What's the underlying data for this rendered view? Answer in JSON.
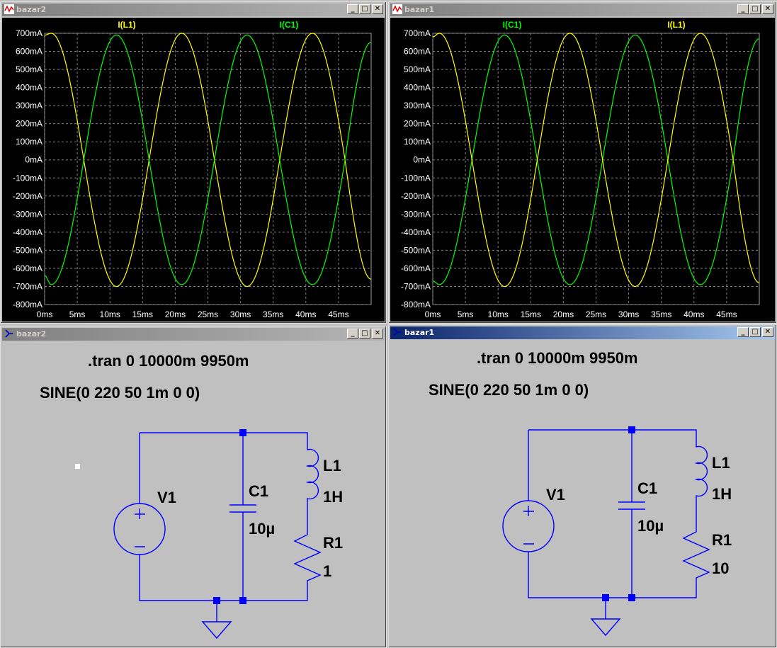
{
  "windows": {
    "plot_left": {
      "title": "bazar2",
      "legend": [
        {
          "label": "I(L1)",
          "color": "#ffff00"
        },
        {
          "label": "I(C1)",
          "color": "#00ff00"
        }
      ]
    },
    "plot_right": {
      "title": "bazar1",
      "legend": [
        {
          "label": "I(C1)",
          "color": "#00ff00"
        },
        {
          "label": "I(L1)",
          "color": "#ffff00"
        }
      ]
    },
    "sch_left": {
      "title": "bazar2",
      "directive_tran": ".tran 0 10000m 9950m",
      "source_value": "SINE(0 220 50 1m 0 0)",
      "v_name": "V1",
      "c_name": "C1",
      "c_value": "10µ",
      "l_name": "L1",
      "l_value": "1H",
      "r_name": "R1",
      "r_value": "1"
    },
    "sch_right": {
      "title": "bazar1",
      "directive_tran": ".tran 0 10000m 9950m",
      "source_value": "SINE(0 220 50 1m 0 0)",
      "v_name": "V1",
      "c_name": "C1",
      "c_value": "10µ",
      "l_name": "L1",
      "l_value": "1H",
      "r_name": "R1",
      "r_value": "10"
    }
  },
  "window_buttons": {
    "minimize": "_",
    "maximize": "□",
    "close": "✕"
  },
  "icons": {
    "plot": "waveform-icon",
    "schematic": "schematic-icon"
  },
  "colors": {
    "trace_l1": "#ffff00",
    "trace_c1": "#00ff00",
    "wire": "#0000ff",
    "plot_bg": "#000000"
  },
  "chart_data": [
    {
      "type": "line",
      "window": "bazar2",
      "x_unit": "ms",
      "xlim": [
        0,
        50
      ],
      "ylim": [
        -800,
        700
      ],
      "y_unit": "mA",
      "y_ticks": [
        "700mA",
        "600mA",
        "500mA",
        "400mA",
        "300mA",
        "200mA",
        "100mA",
        "0mA",
        "-100mA",
        "-200mA",
        "-300mA",
        "-400mA",
        "-500mA",
        "-600mA",
        "-700mA",
        "-800mA"
      ],
      "x_ticks": [
        "0ms",
        "5ms",
        "10ms",
        "15ms",
        "20ms",
        "25ms",
        "30ms",
        "35ms",
        "40ms",
        "45ms"
      ],
      "grid": true,
      "series": [
        {
          "name": "I(L1)",
          "color": "#ffff00",
          "x": [
            0,
            1,
            6,
            11,
            16,
            21,
            26,
            31,
            36,
            41,
            46,
            50
          ],
          "y": [
            690,
            700,
            0,
            -700,
            0,
            700,
            0,
            -700,
            0,
            700,
            0,
            -660
          ]
        },
        {
          "name": "I(C1)",
          "color": "#00ff00",
          "x": [
            0,
            1,
            6,
            11,
            16,
            21,
            26,
            31,
            36,
            41,
            46,
            50
          ],
          "y": [
            -640,
            -690,
            0,
            690,
            0,
            -690,
            0,
            690,
            0,
            -690,
            0,
            650
          ]
        }
      ]
    },
    {
      "type": "line",
      "window": "bazar1",
      "x_unit": "ms",
      "xlim": [
        0,
        50
      ],
      "ylim": [
        -800,
        700
      ],
      "y_unit": "mA",
      "y_ticks": [
        "700mA",
        "600mA",
        "500mA",
        "400mA",
        "300mA",
        "200mA",
        "100mA",
        "0mA",
        "-100mA",
        "-200mA",
        "-300mA",
        "-400mA",
        "-500mA",
        "-600mA",
        "-700mA",
        "-800mA"
      ],
      "x_ticks": [
        "0ms",
        "5ms",
        "10ms",
        "15ms",
        "20ms",
        "25ms",
        "30ms",
        "35ms",
        "40ms",
        "45ms"
      ],
      "grid": true,
      "series": [
        {
          "name": "I(C1)",
          "color": "#00ff00",
          "x": [
            0,
            1,
            6,
            11,
            16,
            21,
            26,
            31,
            36,
            41,
            46,
            50
          ],
          "y": [
            -670,
            -690,
            0,
            690,
            0,
            -690,
            0,
            690,
            0,
            -690,
            0,
            670
          ]
        },
        {
          "name": "I(L1)",
          "color": "#ffff00",
          "x": [
            0,
            1,
            6,
            11,
            16,
            21,
            26,
            31,
            36,
            41,
            46,
            50
          ],
          "y": [
            680,
            700,
            0,
            -700,
            0,
            700,
            0,
            -700,
            0,
            700,
            0,
            -680
          ]
        }
      ]
    }
  ]
}
